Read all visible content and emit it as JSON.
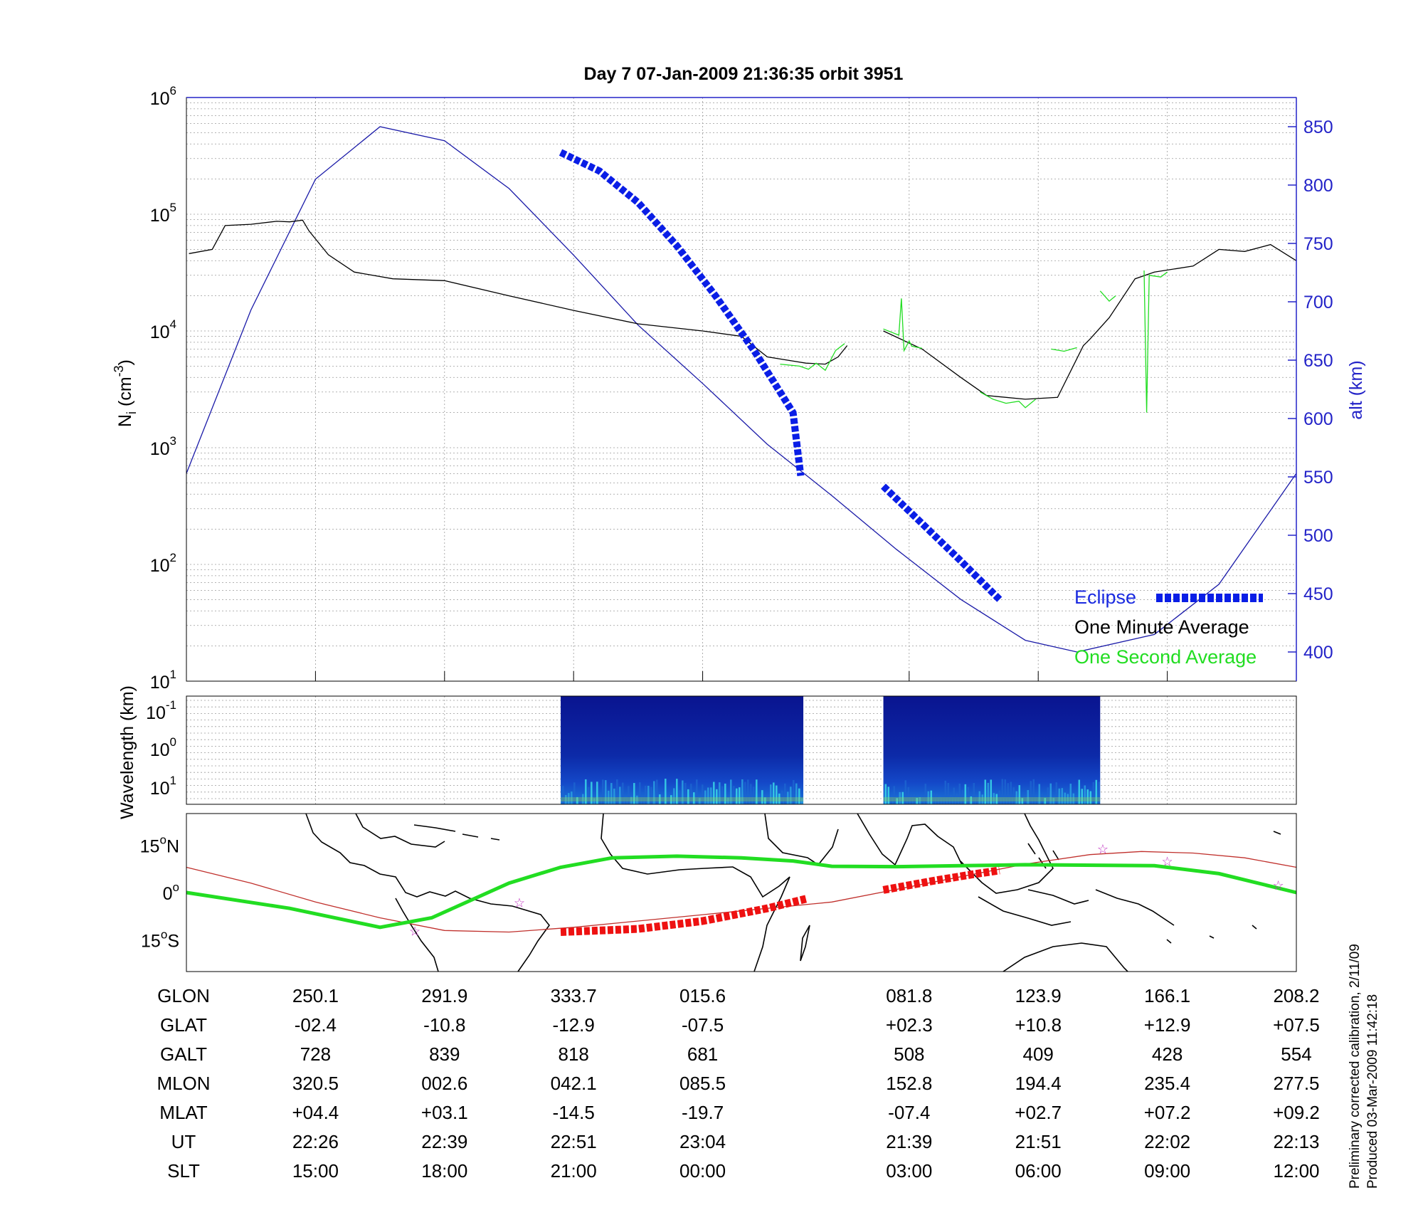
{
  "title": "Day 7  07-Jan-2009 21:36:35   orbit 3951",
  "colors": {
    "altitude": "#1a1aa8",
    "eclipse": "#0a1ee6",
    "one_minute": "#000000",
    "one_second": "#22dd22",
    "track": "#22dd22",
    "dip_equator": "#c0302c",
    "eclipse_track": "#ee1111",
    "axis_right": "#2323c8"
  },
  "chart_data": [
    {
      "type": "line",
      "panel": "ion-density",
      "ylabel_main": "N",
      "ylabel_sub": "i",
      "ylabel_unit": "(cm",
      "ylabel_exp": "-3",
      "ylabel_close": ")",
      "y_scale": "log",
      "ylim": [
        10,
        1000000
      ],
      "yticks": [
        {
          "base": "10",
          "exp": "1"
        },
        {
          "base": "10",
          "exp": "2"
        },
        {
          "base": "10",
          "exp": "3"
        },
        {
          "base": "10",
          "exp": "4"
        },
        {
          "base": "10",
          "exp": "5"
        },
        {
          "base": "10",
          "exp": "6"
        }
      ],
      "y2label": "alt (km)",
      "y2lim": [
        375,
        875
      ],
      "y2ticks": [
        "400",
        "450",
        "500",
        "550",
        "600",
        "650",
        "700",
        "750",
        "800",
        "850"
      ],
      "grid": true,
      "x_range": [
        0,
        8.6
      ],
      "x_gridlines": [
        1,
        2,
        3,
        4,
        5.6,
        6.6,
        7.6
      ],
      "legend": {
        "position": "bottom-right",
        "eclipse": "Eclipse",
        "one_minute": "One Minute Average",
        "one_second": "One Second Average"
      },
      "series": [
        {
          "key": "altitude",
          "axis": "right",
          "points": [
            [
              0,
              553
            ],
            [
              0.5,
              693
            ],
            [
              1,
              805
            ],
            [
              1.5,
              850
            ],
            [
              2,
              838
            ],
            [
              2.5,
              797
            ],
            [
              3,
              740
            ],
            [
              3.5,
              680
            ],
            [
              4,
              630
            ],
            [
              4.5,
              578
            ],
            [
              5,
              534
            ],
            [
              5.5,
              488
            ],
            [
              6,
              445
            ],
            [
              6.5,
              410
            ],
            [
              6.9,
              400
            ],
            [
              7.5,
              415
            ],
            [
              8,
              458
            ],
            [
              8.6,
              553
            ]
          ]
        },
        {
          "key": "eclipse",
          "axis": "right",
          "segments": [
            [
              [
                2.9,
                828
              ],
              [
                3.2,
                812
              ],
              [
                3.5,
                785
              ],
              [
                3.8,
                748
              ],
              [
                4.1,
                705
              ],
              [
                4.4,
                658
              ],
              [
                4.7,
                605
              ],
              [
                4.76,
                551
              ]
            ],
            [
              [
                5.4,
                542
              ],
              [
                5.7,
                510
              ],
              [
                6.0,
                478
              ],
              [
                6.3,
                445
              ]
            ]
          ]
        },
        {
          "key": "one_minute",
          "axis": "left",
          "segments": [
            [
              [
                0.02,
                46000
              ],
              [
                0.2,
                50000
              ],
              [
                0.3,
                80000
              ],
              [
                0.5,
                82000
              ],
              [
                0.7,
                87000
              ],
              [
                0.8,
                86000
              ],
              [
                0.9,
                89000
              ],
              [
                0.95,
                72000
              ],
              [
                1.1,
                45000
              ],
              [
                1.3,
                32000
              ],
              [
                1.6,
                28000
              ],
              [
                2,
                27000
              ],
              [
                2.5,
                20000
              ],
              [
                3,
                15000
              ],
              [
                3.5,
                11500
              ],
              [
                4,
                10000
              ],
              [
                4.3,
                9000
              ],
              [
                4.5,
                6000
              ],
              [
                4.8,
                5300
              ],
              [
                4.95,
                5200
              ],
              [
                5.05,
                6000
              ],
              [
                5.12,
                7500
              ]
            ],
            [
              [
                5.4,
                10000
              ],
              [
                5.7,
                7000
              ],
              [
                6,
                4000
              ],
              [
                6.2,
                2800
              ],
              [
                6.5,
                2600
              ],
              [
                6.75,
                2700
              ],
              [
                6.95,
                7500
              ],
              [
                7,
                8500
              ],
              [
                7.15,
                13000
              ],
              [
                7.35,
                28000
              ],
              [
                7.5,
                32000
              ],
              [
                7.8,
                36000
              ],
              [
                8,
                50000
              ],
              [
                8.2,
                48000
              ],
              [
                8.4,
                55000
              ],
              [
                8.6,
                40000
              ]
            ]
          ]
        },
        {
          "key": "one_second",
          "axis": "left",
          "segments": [
            [
              [
                4.6,
                5200
              ],
              [
                4.75,
                5000
              ],
              [
                4.82,
                4700
              ],
              [
                4.88,
                5300
              ],
              [
                4.95,
                4600
              ],
              [
                5.03,
                6800
              ],
              [
                5.1,
                7800
              ]
            ],
            [
              [
                5.4,
                10400
              ],
              [
                5.52,
                9200
              ],
              [
                5.54,
                19000
              ],
              [
                5.56,
                6800
              ],
              [
                5.6,
                8200
              ],
              [
                5.62,
                7400
              ],
              [
                5.7,
                7100
              ]
            ],
            [
              [
                6.15,
                3000
              ],
              [
                6.25,
                2600
              ],
              [
                6.35,
                2400
              ],
              [
                6.45,
                2500
              ],
              [
                6.5,
                2200
              ],
              [
                6.58,
                2600
              ]
            ],
            [
              [
                6.7,
                7000
              ],
              [
                6.8,
                6700
              ],
              [
                6.9,
                7200
              ]
            ],
            [
              [
                7.08,
                22000
              ],
              [
                7.15,
                18000
              ],
              [
                7.2,
                20000
              ]
            ],
            [
              [
                7.42,
                33000
              ],
              [
                7.44,
                2000
              ],
              [
                7.46,
                30000
              ],
              [
                7.55,
                29000
              ],
              [
                7.6,
                32000
              ]
            ]
          ]
        }
      ]
    },
    {
      "type": "heatmap",
      "panel": "wavelength",
      "ylabel": "Wavelength (km)",
      "y_scale": "log",
      "yticks": [
        {
          "base": "10",
          "exp": "-1"
        },
        {
          "base": "10",
          "exp": "0"
        },
        {
          "base": "10",
          "exp": "1"
        }
      ],
      "blocks": [
        [
          2.9,
          4.78
        ],
        [
          5.4,
          7.08
        ]
      ]
    },
    {
      "type": "line",
      "panel": "ground-track",
      "yticks": [
        {
          "base": "15",
          "sup": "o",
          "hem": "N"
        },
        {
          "base": "0",
          "sup": "o",
          "hem": ""
        },
        {
          "base": "15",
          "sup": "o",
          "hem": "S"
        }
      ],
      "ylim": [
        -25,
        25
      ],
      "series": [
        {
          "key": "track",
          "points": [
            [
              0,
              0
            ],
            [
              0.8,
              -5
            ],
            [
              1.5,
              -11
            ],
            [
              1.9,
              -8
            ],
            [
              2.5,
              3
            ],
            [
              2.9,
              8
            ],
            [
              3.3,
              11
            ],
            [
              3.8,
              11.5
            ],
            [
              4.3,
              11
            ],
            [
              4.7,
              10
            ],
            [
              5,
              8.3
            ],
            [
              5.5,
              8.2
            ],
            [
              6,
              8.5
            ],
            [
              6.5,
              8.8
            ],
            [
              7.5,
              8.5
            ],
            [
              8,
              6
            ],
            [
              8.6,
              0
            ]
          ]
        },
        {
          "key": "dip_equator",
          "points": [
            [
              0,
              8
            ],
            [
              0.5,
              3
            ],
            [
              1,
              -3
            ],
            [
              1.5,
              -8
            ],
            [
              2,
              -12
            ],
            [
              2.5,
              -12.5
            ],
            [
              3,
              -11
            ],
            [
              4,
              -7
            ],
            [
              5,
              -3
            ],
            [
              5.5,
              1
            ],
            [
              6,
              5
            ],
            [
              6.5,
              9
            ],
            [
              7,
              12
            ],
            [
              7.4,
              13
            ],
            [
              7.8,
              12.5
            ],
            [
              8.2,
              11
            ],
            [
              8.6,
              8
            ]
          ]
        },
        {
          "key": "eclipse_track",
          "segments": [
            [
              [
                2.9,
                -12.5
              ],
              [
                3.5,
                -11.5
              ],
              [
                4,
                -9
              ],
              [
                4.5,
                -5
              ],
              [
                4.8,
                -2
              ]
            ],
            [
              [
                5.4,
                0.8
              ],
              [
                5.8,
                3.8
              ],
              [
                6.1,
                5.8
              ],
              [
                6.3,
                7
              ]
            ]
          ]
        }
      ],
      "stars": [
        [
          1.77,
          -12
        ],
        [
          2.58,
          -3
        ],
        [
          7.1,
          14
        ],
        [
          7.6,
          10
        ],
        [
          8.46,
          2.5
        ]
      ]
    }
  ],
  "table": {
    "columns_x": [
      1,
      2,
      3,
      4,
      5.6,
      6.6,
      7.6,
      8.6
    ],
    "rows": [
      {
        "label": "GLON",
        "values": [
          "250.1",
          "291.9",
          "333.7",
          "015.6",
          "081.8",
          "123.9",
          "166.1",
          "208.2"
        ]
      },
      {
        "label": "GLAT",
        "values": [
          "-02.4",
          "-10.8",
          "-12.9",
          "-07.5",
          "+02.3",
          "+10.8",
          "+12.9",
          "+07.5"
        ]
      },
      {
        "label": "GALT",
        "values": [
          "728",
          "839",
          "818",
          "681",
          "508",
          "409",
          "428",
          "554"
        ]
      },
      {
        "label": "MLON",
        "values": [
          "320.5",
          "002.6",
          "042.1",
          "085.5",
          "152.8",
          "194.4",
          "235.4",
          "277.5"
        ]
      },
      {
        "label": "MLAT",
        "values": [
          "+04.4",
          "+03.1",
          "-14.5",
          "-19.7",
          "-07.4",
          "+02.7",
          "+07.2",
          "+09.2"
        ]
      },
      {
        "label": "UT",
        "values": [
          "22:26",
          "22:39",
          "22:51",
          "23:04",
          "21:39",
          "21:51",
          "22:02",
          "22:13"
        ]
      },
      {
        "label": "SLT",
        "values": [
          "15:00",
          "18:00",
          "21:00",
          "00:00",
          "03:00",
          "06:00",
          "09:00",
          "12:00"
        ]
      }
    ]
  },
  "footnote": {
    "line1": "Preliminary corrected calibration, 2/11/09",
    "line2": "Produced 03-Mar-2009 11:42:18"
  }
}
